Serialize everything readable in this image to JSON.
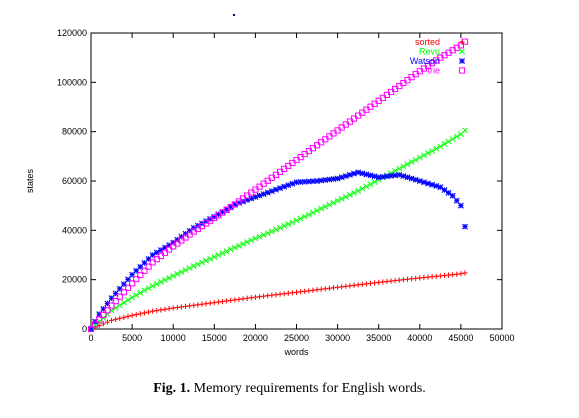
{
  "caption": {
    "figure_number": "Fig. 1.",
    "text": "Memory requirements for English words."
  },
  "chart_data": {
    "type": "scatter",
    "title": "",
    "xlabel": "words",
    "ylabel": "states",
    "xlim": [
      0,
      50000
    ],
    "ylim": [
      0,
      120000
    ],
    "xticks": [
      0,
      5000,
      10000,
      15000,
      20000,
      25000,
      30000,
      35000,
      40000,
      45000,
      50000
    ],
    "yticks": [
      0,
      20000,
      40000,
      60000,
      80000,
      100000,
      120000
    ],
    "legend_position": "top-right",
    "grid": false,
    "series": [
      {
        "name": "sorted",
        "color": "#ff0000",
        "marker": "plus",
        "x": [
          0,
          2500,
          5000,
          7500,
          10000,
          12500,
          15000,
          17500,
          20000,
          22500,
          25000,
          27500,
          30000,
          32500,
          35000,
          37500,
          40000,
          42500,
          45000,
          45500
        ],
        "y": [
          0,
          3500,
          5500,
          7200,
          8500,
          9600,
          10700,
          11800,
          12900,
          13900,
          14900,
          15900,
          16900,
          17900,
          18900,
          19800,
          20700,
          21500,
          22400,
          22700
        ]
      },
      {
        "name": "Revu",
        "color": "#00ff00",
        "marker": "x",
        "x": [
          0,
          2500,
          5000,
          7500,
          10000,
          12500,
          15000,
          17500,
          20000,
          22500,
          25000,
          27500,
          30000,
          32500,
          35000,
          37500,
          40000,
          42500,
          45000,
          45500
        ],
        "y": [
          0,
          7500,
          12800,
          17500,
          21500,
          25500,
          29200,
          33000,
          36700,
          40300,
          44000,
          48000,
          52000,
          56000,
          60500,
          65000,
          69500,
          74000,
          79000,
          80500
        ]
      },
      {
        "name": "Watson",
        "color": "#0000ff",
        "marker": "star",
        "x": [
          0,
          1000,
          2500,
          5000,
          7500,
          10000,
          12500,
          15000,
          17500,
          20000,
          22500,
          25000,
          27500,
          30000,
          32500,
          35000,
          37500,
          40000,
          42500,
          44000,
          45000,
          45500
        ],
        "y": [
          0,
          6000,
          12500,
          22000,
          30000,
          35000,
          41000,
          45500,
          50500,
          53500,
          56500,
          59500,
          60000,
          61000,
          63500,
          61500,
          62500,
          60000,
          57500,
          54000,
          50000,
          41500
        ]
      },
      {
        "name": "trie",
        "color": "#ff00ff",
        "marker": "square",
        "x": [
          0,
          2500,
          5000,
          7500,
          10000,
          12500,
          15000,
          17500,
          20000,
          22500,
          25000,
          27500,
          30000,
          32500,
          35000,
          37500,
          40000,
          42500,
          45000,
          45500
        ],
        "y": [
          0,
          9500,
          18500,
          27000,
          33500,
          39500,
          45000,
          50500,
          56500,
          62500,
          68500,
          74500,
          80500,
          86500,
          92500,
          98500,
          104500,
          110000,
          115000,
          116500
        ]
      }
    ],
    "annotations": []
  }
}
